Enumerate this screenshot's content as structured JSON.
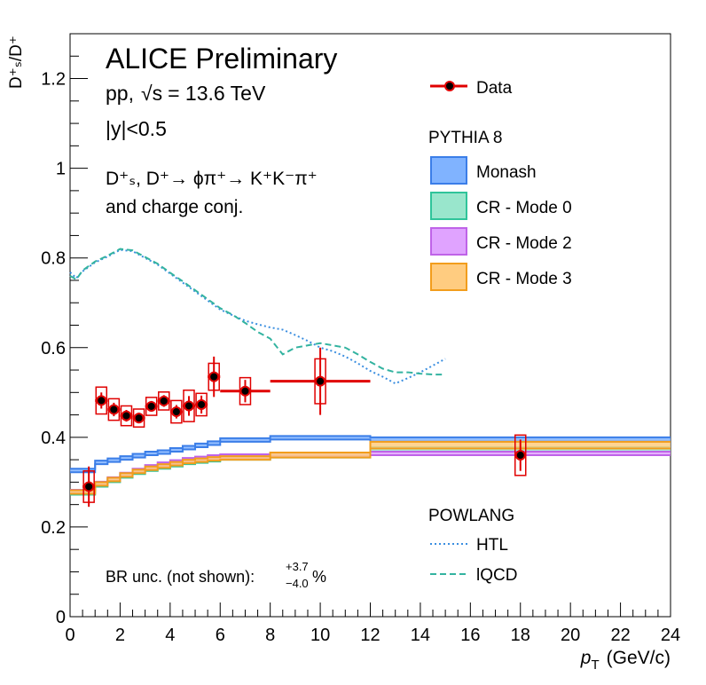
{
  "chart_data": {
    "type": "scatter",
    "header": {
      "title": "ALICE Preliminary",
      "system": "pp,",
      "energy_sym": "√s",
      "energy_val": "= 13.6 TeV",
      "rapidity": "|y|<0.5",
      "decay": "D⁺ₛ, D⁺→ ϕπ⁺→ K⁺K⁻π⁺",
      "decay2": "and charge conj.",
      "br_text": "BR unc. (not shown):",
      "br_up": "+3.7",
      "br_down": "−4.0",
      "br_unit": "%"
    },
    "xlabel": "p",
    "xlabel_sub": "T",
    "xlabel_unit": "(GeV/c)",
    "ylabel": "D⁺ₛ/D⁺",
    "xlim": [
      0,
      24
    ],
    "ylim": [
      0,
      1.3
    ],
    "x_ticks": [
      0,
      2,
      4,
      6,
      8,
      10,
      12,
      14,
      16,
      18,
      20,
      22,
      24
    ],
    "x_tick_labels": [
      "0",
      "2",
      "4",
      "6",
      "8",
      "10",
      "12",
      "14",
      "16",
      "18",
      "20",
      "22",
      "24"
    ],
    "y_ticks": [
      0,
      0.2,
      0.4,
      0.6,
      0.8,
      1,
      1.2
    ],
    "y_tick_labels": [
      "0",
      "0.2",
      "0.4",
      "0.6",
      "0.8",
      "1",
      "1.2"
    ],
    "colors": {
      "data": "#e00000",
      "monash": "#3b7ee8",
      "monash_fill": "#80b3ff",
      "cr0": "#2fc49a",
      "cr0_fill": "#99e6cc",
      "cr2": "#bf63e8",
      "cr2_fill": "#e0a3ff",
      "cr3": "#f29d1c",
      "cr3_fill": "#ffcc80",
      "htl": "#3a8ee0",
      "lqcd": "#33b3a0"
    },
    "data": {
      "name": "Data",
      "points": [
        {
          "x": 0.75,
          "xlo": 0.5,
          "xhi": 1.0,
          "y": 0.29,
          "stat": 0.045,
          "sys": 0.035
        },
        {
          "x": 1.25,
          "xlo": 1.0,
          "xhi": 1.5,
          "y": 0.482,
          "stat": 0.018,
          "sys": 0.03
        },
        {
          "x": 1.75,
          "xlo": 1.5,
          "xhi": 2.0,
          "y": 0.462,
          "stat": 0.015,
          "sys": 0.024
        },
        {
          "x": 2.25,
          "xlo": 2.0,
          "xhi": 2.5,
          "y": 0.448,
          "stat": 0.013,
          "sys": 0.022
        },
        {
          "x": 2.75,
          "xlo": 2.5,
          "xhi": 3.0,
          "y": 0.443,
          "stat": 0.012,
          "sys": 0.02
        },
        {
          "x": 3.25,
          "xlo": 3.0,
          "xhi": 3.5,
          "y": 0.469,
          "stat": 0.012,
          "sys": 0.02
        },
        {
          "x": 3.75,
          "xlo": 3.5,
          "xhi": 4.0,
          "y": 0.481,
          "stat": 0.013,
          "sys": 0.02
        },
        {
          "x": 4.25,
          "xlo": 4.0,
          "xhi": 4.5,
          "y": 0.457,
          "stat": 0.015,
          "sys": 0.025
        },
        {
          "x": 4.75,
          "xlo": 4.5,
          "xhi": 5.0,
          "y": 0.47,
          "stat": 0.022,
          "sys": 0.035
        },
        {
          "x": 5.25,
          "xlo": 5.0,
          "xhi": 5.5,
          "y": 0.473,
          "stat": 0.02,
          "sys": 0.025
        },
        {
          "x": 5.75,
          "xlo": 5.5,
          "xhi": 6.0,
          "y": 0.535,
          "stat": 0.045,
          "sys": 0.03
        },
        {
          "x": 7.0,
          "xlo": 6.0,
          "xhi": 8.0,
          "y": 0.503,
          "stat": 0.025,
          "sys": 0.03
        },
        {
          "x": 10.0,
          "xlo": 8.0,
          "xhi": 12.0,
          "y": 0.525,
          "stat": 0.075,
          "sys": 0.05
        },
        {
          "x": 18.0,
          "xlo": 18.0,
          "xhi": 18.0,
          "y": 0.36,
          "stat": 0.035,
          "sys": 0.045
        }
      ]
    },
    "pythia_header": "PYTHIA 8",
    "pythia": [
      {
        "name": "Monash",
        "key": "monash",
        "edges": [
          0,
          1,
          1.5,
          2,
          2.5,
          3,
          3.5,
          4,
          4.5,
          5,
          5.5,
          6,
          8,
          12,
          24
        ],
        "lo": [
          0.322,
          0.34,
          0.345,
          0.35,
          0.355,
          0.36,
          0.363,
          0.368,
          0.373,
          0.378,
          0.383,
          0.39,
          0.395,
          0.39
        ],
        "hi": [
          0.33,
          0.348,
          0.353,
          0.358,
          0.363,
          0.368,
          0.371,
          0.376,
          0.381,
          0.386,
          0.391,
          0.398,
          0.403,
          0.4
        ]
      },
      {
        "name": "CR - Mode 0",
        "key": "cr0",
        "edges": [
          0,
          1,
          1.5,
          2,
          2.5,
          3,
          3.5,
          4,
          4.5,
          5,
          5.5,
          6,
          8,
          12,
          24
        ],
        "lo": [
          0.272,
          0.29,
          0.3,
          0.31,
          0.318,
          0.325,
          0.33,
          0.335,
          0.34,
          0.343,
          0.346,
          0.35,
          0.355,
          0.368
        ],
        "hi": [
          0.28,
          0.298,
          0.308,
          0.318,
          0.326,
          0.333,
          0.338,
          0.343,
          0.348,
          0.351,
          0.354,
          0.358,
          0.365,
          0.378
        ]
      },
      {
        "name": "CR - Mode 2",
        "key": "cr2",
        "edges": [
          0,
          1,
          1.5,
          2,
          2.5,
          3,
          3.5,
          4,
          4.5,
          5,
          5.5,
          6,
          8,
          12,
          24
        ],
        "lo": [
          0.275,
          0.293,
          0.303,
          0.313,
          0.322,
          0.33,
          0.336,
          0.341,
          0.346,
          0.349,
          0.352,
          0.354,
          0.358,
          0.36
        ],
        "hi": [
          0.283,
          0.301,
          0.311,
          0.321,
          0.33,
          0.338,
          0.344,
          0.349,
          0.354,
          0.357,
          0.36,
          0.362,
          0.366,
          0.368
        ]
      },
      {
        "name": "CR - Mode 3",
        "key": "cr3",
        "edges": [
          0,
          1,
          1.5,
          2,
          2.5,
          3,
          3.5,
          4,
          4.5,
          5,
          5.5,
          6,
          8,
          12,
          24
        ],
        "lo": [
          0.274,
          0.292,
          0.302,
          0.312,
          0.32,
          0.327,
          0.332,
          0.337,
          0.342,
          0.345,
          0.348,
          0.35,
          0.355,
          0.375
        ],
        "hi": [
          0.282,
          0.3,
          0.31,
          0.32,
          0.328,
          0.335,
          0.34,
          0.345,
          0.35,
          0.353,
          0.356,
          0.358,
          0.366,
          0.39
        ]
      }
    ],
    "powlang_header": "POWLANG",
    "powlang": [
      {
        "name": "HTL",
        "key": "htl",
        "dash": "dotted",
        "x": [
          0,
          0.25,
          0.5,
          1,
          1.5,
          2,
          2.5,
          3,
          3.5,
          4,
          4.5,
          5,
          5.5,
          6,
          6.5,
          7,
          7.5,
          8,
          8.5,
          9,
          9.5,
          10,
          10.5,
          11,
          11.5,
          12,
          12.5,
          13,
          13.5,
          14,
          14.5,
          15
        ],
        "y": [
          0.768,
          0.755,
          0.77,
          0.79,
          0.803,
          0.818,
          0.815,
          0.8,
          0.785,
          0.765,
          0.745,
          0.725,
          0.705,
          0.685,
          0.672,
          0.66,
          0.652,
          0.645,
          0.64,
          0.628,
          0.615,
          0.6,
          0.592,
          0.58,
          0.565,
          0.548,
          0.535,
          0.52,
          0.532,
          0.545,
          0.56,
          0.575
        ]
      },
      {
        "name": "lQCD",
        "key": "lqcd",
        "dash": "dashed",
        "x": [
          0,
          0.25,
          0.5,
          1,
          1.5,
          2,
          2.5,
          3,
          3.5,
          4,
          4.5,
          5,
          5.5,
          6,
          6.5,
          7,
          7.5,
          8,
          8.5,
          9,
          9.5,
          10,
          10.5,
          11,
          11.5,
          12,
          12.5,
          13,
          13.5,
          14,
          14.5,
          15
        ],
        "y": [
          0.76,
          0.752,
          0.772,
          0.792,
          0.805,
          0.82,
          0.817,
          0.802,
          0.787,
          0.767,
          0.748,
          0.728,
          0.708,
          0.688,
          0.673,
          0.655,
          0.635,
          0.62,
          0.585,
          0.6,
          0.605,
          0.61,
          0.605,
          0.6,
          0.585,
          0.568,
          0.553,
          0.545,
          0.545,
          0.542,
          0.54,
          0.54
        ]
      }
    ]
  }
}
